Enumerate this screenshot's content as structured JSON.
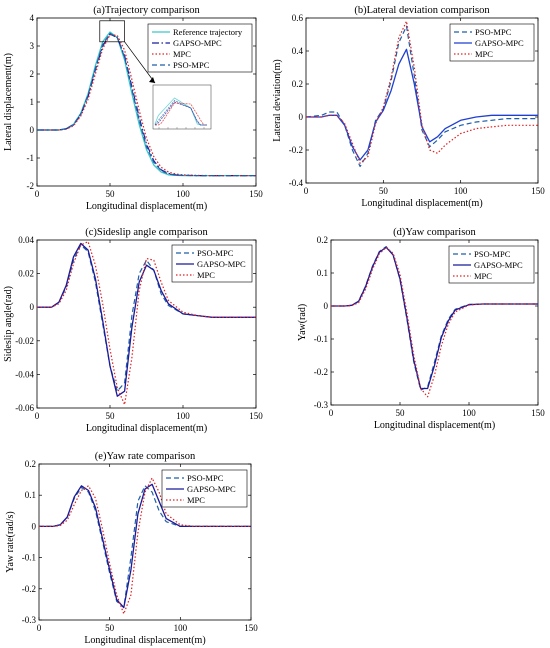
{
  "chart_data": [
    {
      "type": "line",
      "title": "(a)Trajectory comparison",
      "xlabel": "Longitudinal displacement(m)",
      "ylabel": "Lateral displacement(m)",
      "xlim": [
        0,
        150
      ],
      "ylim": [
        -2,
        4
      ],
      "xticks": [
        0,
        50,
        100,
        150
      ],
      "yticks": [
        -2,
        -1,
        0,
        1,
        2,
        3,
        4
      ],
      "legend": "top-right",
      "inset": "zoomed peak region",
      "series": [
        {
          "name": "Reference trajectory",
          "style": "solid",
          "color": "#3cc8c8",
          "x": [
            0,
            15,
            20,
            25,
            30,
            35,
            40,
            45,
            50,
            55,
            60,
            65,
            70,
            75,
            80,
            85,
            90,
            95,
            100,
            110,
            120,
            130,
            140,
            150
          ],
          "y": [
            0,
            0,
            0.05,
            0.2,
            0.6,
            1.3,
            2.3,
            3.15,
            3.5,
            3.3,
            2.5,
            1.3,
            0.2,
            -0.7,
            -1.25,
            -1.5,
            -1.6,
            -1.62,
            -1.63,
            -1.63,
            -1.63,
            -1.63,
            -1.63,
            -1.63
          ]
        },
        {
          "name": "GAPSO-MPC",
          "style": "dashdot",
          "color": "#1a1aa0",
          "x": [
            0,
            15,
            20,
            25,
            30,
            35,
            40,
            45,
            50,
            55,
            60,
            65,
            70,
            75,
            80,
            85,
            90,
            95,
            100,
            110,
            120,
            130,
            140,
            150
          ],
          "y": [
            0,
            0,
            0.04,
            0.18,
            0.55,
            1.2,
            2.15,
            3.0,
            3.42,
            3.3,
            2.65,
            1.55,
            0.45,
            -0.5,
            -1.1,
            -1.42,
            -1.55,
            -1.6,
            -1.62,
            -1.63,
            -1.63,
            -1.63,
            -1.63,
            -1.63
          ]
        },
        {
          "name": "MPC",
          "style": "dotted",
          "color": "#e02020",
          "x": [
            0,
            15,
            20,
            25,
            30,
            35,
            40,
            45,
            50,
            55,
            60,
            65,
            70,
            75,
            80,
            85,
            90,
            95,
            100,
            110,
            120,
            130,
            140,
            150
          ],
          "y": [
            0,
            0,
            0.03,
            0.15,
            0.5,
            1.1,
            2.0,
            2.9,
            3.4,
            3.38,
            2.85,
            1.8,
            0.7,
            -0.3,
            -0.95,
            -1.33,
            -1.5,
            -1.57,
            -1.6,
            -1.62,
            -1.63,
            -1.63,
            -1.63,
            -1.63
          ]
        },
        {
          "name": "PSO-MPC",
          "style": "dashed",
          "color": "#1f5fa8",
          "x": [
            0,
            15,
            20,
            25,
            30,
            35,
            40,
            45,
            50,
            55,
            60,
            65,
            70,
            75,
            80,
            85,
            90,
            95,
            100,
            110,
            120,
            130,
            140,
            150
          ],
          "y": [
            0,
            0,
            0.05,
            0.2,
            0.58,
            1.25,
            2.2,
            3.05,
            3.45,
            3.3,
            2.6,
            1.45,
            0.35,
            -0.6,
            -1.15,
            -1.45,
            -1.57,
            -1.61,
            -1.62,
            -1.63,
            -1.63,
            -1.63,
            -1.63,
            -1.63
          ]
        }
      ]
    },
    {
      "type": "line",
      "title": "(b)Lateral deviation comparison",
      "xlabel": "Longitudinal displacement(m)",
      "ylabel": "Lateral deviation(m)",
      "xlim": [
        0,
        150
      ],
      "ylim": [
        -0.4,
        0.6
      ],
      "xticks": [
        0,
        50,
        100,
        150
      ],
      "yticks": [
        -0.4,
        -0.2,
        0,
        0.2,
        0.4,
        0.6
      ],
      "legend": "top-right",
      "series": [
        {
          "name": "PSO-MPC",
          "style": "dashed",
          "color": "#1f5fa8",
          "x": [
            0,
            10,
            15,
            20,
            25,
            30,
            35,
            40,
            45,
            50,
            55,
            60,
            65,
            70,
            75,
            80,
            85,
            90,
            100,
            110,
            120,
            130,
            150
          ],
          "y": [
            0,
            0.01,
            0.03,
            0.03,
            -0.05,
            -0.2,
            -0.3,
            -0.22,
            -0.02,
            0.05,
            0.22,
            0.45,
            0.55,
            0.25,
            -0.08,
            -0.18,
            -0.14,
            -0.09,
            -0.05,
            -0.03,
            -0.02,
            -0.01,
            -0.01
          ]
        },
        {
          "name": "GAPSO-MPC",
          "style": "solid",
          "color": "#1f3fd0",
          "x": [
            0,
            10,
            15,
            20,
            25,
            30,
            35,
            40,
            45,
            50,
            55,
            60,
            65,
            70,
            75,
            80,
            85,
            90,
            100,
            110,
            120,
            130,
            150
          ],
          "y": [
            0,
            0,
            0.01,
            0.01,
            -0.05,
            -0.18,
            -0.26,
            -0.2,
            -0.03,
            0.04,
            0.16,
            0.32,
            0.41,
            0.2,
            -0.06,
            -0.15,
            -0.12,
            -0.07,
            -0.02,
            0,
            0.01,
            0.01,
            0.01
          ]
        },
        {
          "name": "MPC",
          "style": "dotted",
          "color": "#e02020",
          "x": [
            0,
            10,
            15,
            20,
            25,
            30,
            35,
            40,
            45,
            50,
            55,
            60,
            65,
            70,
            75,
            80,
            85,
            90,
            100,
            110,
            120,
            130,
            150
          ],
          "y": [
            0,
            0,
            0.01,
            0.01,
            -0.04,
            -0.16,
            -0.28,
            -0.24,
            -0.04,
            0.06,
            0.24,
            0.48,
            0.58,
            0.3,
            -0.05,
            -0.2,
            -0.22,
            -0.17,
            -0.1,
            -0.07,
            -0.06,
            -0.05,
            -0.05
          ]
        }
      ]
    },
    {
      "type": "line",
      "title": "(c)Sideslip angle comparison",
      "xlabel": "Longitudinal displacement(m)",
      "ylabel": "Sideslip angle(rad)",
      "xlim": [
        0,
        150
      ],
      "ylim": [
        -0.06,
        0.04
      ],
      "xticks": [
        0,
        50,
        100,
        150
      ],
      "yticks": [
        -0.06,
        -0.04,
        -0.02,
        0,
        0.02,
        0.04
      ],
      "legend": "top-right",
      "series": [
        {
          "name": "PSO-MPC",
          "style": "dashed",
          "color": "#1f5fa8",
          "x": [
            0,
            10,
            15,
            20,
            25,
            30,
            35,
            40,
            45,
            50,
            55,
            60,
            65,
            70,
            75,
            80,
            85,
            90,
            100,
            110,
            120,
            130,
            150
          ],
          "y": [
            0,
            0,
            0.003,
            0.012,
            0.028,
            0.037,
            0.033,
            0.015,
            -0.01,
            -0.035,
            -0.05,
            -0.045,
            -0.005,
            0.02,
            0.028,
            0.022,
            0.008,
            0.001,
            -0.004,
            -0.005,
            -0.006,
            -0.006,
            -0.006
          ]
        },
        {
          "name": "GAPSO-MPC",
          "style": "solid",
          "color": "#1a1a9a",
          "x": [
            0,
            10,
            15,
            20,
            25,
            30,
            35,
            40,
            45,
            50,
            55,
            60,
            65,
            70,
            75,
            80,
            85,
            90,
            100,
            110,
            120,
            130,
            150
          ],
          "y": [
            0,
            0,
            0.003,
            0.013,
            0.03,
            0.038,
            0.034,
            0.017,
            -0.008,
            -0.035,
            -0.053,
            -0.05,
            -0.012,
            0.015,
            0.025,
            0.022,
            0.01,
            0.002,
            -0.004,
            -0.005,
            -0.006,
            -0.006,
            -0.006
          ]
        },
        {
          "name": "MPC",
          "style": "dotted",
          "color": "#e02020",
          "x": [
            0,
            10,
            15,
            20,
            25,
            30,
            35,
            40,
            45,
            50,
            55,
            60,
            65,
            70,
            75,
            80,
            85,
            90,
            100,
            110,
            120,
            130,
            150
          ],
          "y": [
            0,
            0,
            0.002,
            0.01,
            0.026,
            0.037,
            0.039,
            0.025,
            0.002,
            -0.025,
            -0.048,
            -0.058,
            -0.03,
            0.01,
            0.029,
            0.028,
            0.015,
            0.004,
            -0.003,
            -0.005,
            -0.006,
            -0.006,
            -0.006
          ]
        }
      ]
    },
    {
      "type": "line",
      "title": "(d)Yaw comparison",
      "xlabel": "Longitudinal displacement(m)",
      "ylabel": "Yaw(rad)",
      "xlim": [
        0,
        150
      ],
      "ylim": [
        -0.3,
        0.2
      ],
      "xticks": [
        0,
        50,
        100,
        150
      ],
      "yticks": [
        -0.3,
        -0.2,
        -0.1,
        0,
        0.1,
        0.2
      ],
      "legend": "top-right",
      "series": [
        {
          "name": "PSO-MPC",
          "style": "dashed",
          "color": "#1f5fa8",
          "x": [
            0,
            10,
            15,
            20,
            25,
            30,
            35,
            40,
            45,
            50,
            55,
            60,
            65,
            70,
            75,
            80,
            85,
            90,
            100,
            110,
            120,
            150
          ],
          "y": [
            0,
            0,
            0.002,
            0.015,
            0.06,
            0.12,
            0.165,
            0.18,
            0.155,
            0.08,
            -0.04,
            -0.17,
            -0.255,
            -0.245,
            -0.17,
            -0.09,
            -0.04,
            -0.01,
            0.005,
            0.006,
            0.006,
            0.006
          ]
        },
        {
          "name": "GAPSO-MPC",
          "style": "solid",
          "color": "#1a1a9a",
          "x": [
            0,
            10,
            15,
            20,
            25,
            30,
            35,
            40,
            45,
            50,
            55,
            60,
            65,
            70,
            75,
            80,
            85,
            90,
            100,
            110,
            120,
            150
          ],
          "y": [
            0,
            0,
            0.002,
            0.014,
            0.058,
            0.118,
            0.163,
            0.178,
            0.155,
            0.082,
            -0.035,
            -0.165,
            -0.25,
            -0.25,
            -0.18,
            -0.095,
            -0.045,
            -0.012,
            0.004,
            0.006,
            0.006,
            0.006
          ]
        },
        {
          "name": "MPC",
          "style": "dotted",
          "color": "#e02020",
          "x": [
            0,
            10,
            15,
            20,
            25,
            30,
            35,
            40,
            45,
            50,
            55,
            60,
            65,
            70,
            75,
            80,
            85,
            90,
            100,
            110,
            120,
            150
          ],
          "y": [
            0,
            0,
            0.001,
            0.01,
            0.05,
            0.11,
            0.158,
            0.178,
            0.16,
            0.095,
            -0.02,
            -0.15,
            -0.25,
            -0.275,
            -0.21,
            -0.12,
            -0.055,
            -0.018,
            0.003,
            0.006,
            0.006,
            0.006
          ]
        }
      ]
    },
    {
      "type": "line",
      "title": "(e)Yaw rate comparison",
      "xlabel": "Longitudinal displacement(m)",
      "ylabel": "Yaw rate(rad/s)",
      "xlim": [
        0,
        150
      ],
      "ylim": [
        -0.3,
        0.2
      ],
      "xticks": [
        0,
        50,
        100,
        150
      ],
      "yticks": [
        -0.3,
        -0.2,
        -0.1,
        0,
        0.1,
        0.2
      ],
      "legend": "top-right",
      "series": [
        {
          "name": "PSO-MPC",
          "style": "dashed",
          "color": "#1f5fa8",
          "x": [
            0,
            10,
            15,
            20,
            25,
            30,
            35,
            40,
            45,
            50,
            55,
            60,
            65,
            70,
            75,
            80,
            85,
            90,
            100,
            110,
            120,
            150
          ],
          "y": [
            0,
            0,
            0.005,
            0.03,
            0.09,
            0.125,
            0.11,
            0.05,
            -0.05,
            -0.15,
            -0.24,
            -0.26,
            -0.1,
            0.08,
            0.13,
            0.11,
            0.05,
            0.015,
            0,
            0,
            0,
            0
          ]
        },
        {
          "name": "GAPSO-MPC",
          "style": "solid",
          "color": "#1a1a9a",
          "x": [
            0,
            10,
            15,
            20,
            25,
            30,
            35,
            40,
            45,
            50,
            55,
            60,
            65,
            70,
            75,
            80,
            85,
            90,
            100,
            110,
            120,
            150
          ],
          "y": [
            0,
            0,
            0.005,
            0.03,
            0.095,
            0.13,
            0.115,
            0.06,
            -0.04,
            -0.14,
            -0.235,
            -0.26,
            -0.14,
            0.04,
            0.12,
            0.135,
            0.08,
            0.025,
            0,
            0,
            0,
            0
          ]
        },
        {
          "name": "MPC",
          "style": "dotted",
          "color": "#e02020",
          "x": [
            0,
            10,
            15,
            20,
            25,
            30,
            35,
            40,
            45,
            50,
            55,
            60,
            65,
            70,
            75,
            80,
            85,
            90,
            100,
            110,
            120,
            150
          ],
          "y": [
            0,
            0,
            0.003,
            0.02,
            0.07,
            0.115,
            0.13,
            0.09,
            -0.01,
            -0.12,
            -0.22,
            -0.28,
            -0.22,
            -0.02,
            0.11,
            0.155,
            0.11,
            0.04,
            0.005,
            0,
            0,
            0
          ]
        }
      ]
    }
  ]
}
